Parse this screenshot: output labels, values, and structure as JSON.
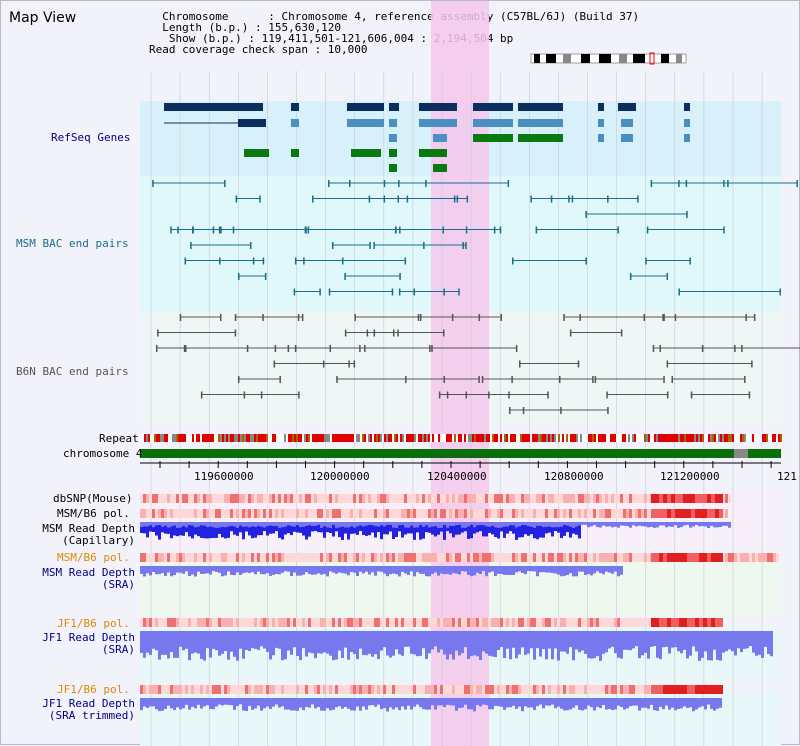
{
  "title": "Map View",
  "info": {
    "chromosome": "  Chromosome      : Chromosome 4, reference assembly (C57BL/6J) (Build 37)",
    "length": "  Length (b.p.) : 155,630,120",
    "show": "   Show (b.p.) : 119,411,501-121,606,004 : 2,194,504 bp",
    "coverage": "Read coverage check span : 10,000"
  },
  "tracks": {
    "refseq": "RefSeq Genes",
    "msm_bac": "MSM BAC end pairs",
    "b6n_bac": "B6N BAC end pairs",
    "repeat": "Repeat",
    "chromosome": "chromosome 4",
    "dbsnp": "dbSNP(Mouse)",
    "msm_b6_pol_1": "MSM/B6 pol.",
    "msm_rd_cap_1": "MSM Read Depth",
    "msm_rd_cap_2": "(Capillary)",
    "msm_b6_pol_2": "MSM/B6 pol.",
    "msm_rd_sra_1": "MSM Read Depth",
    "msm_rd_sra_2": "(SRA)",
    "jf1_b6_pol_1": "JF1/B6 pol.",
    "jf1_rd_sra_1": "JF1 Read Depth",
    "jf1_rd_sra_2": "(SRA)",
    "jf1_b6_pol_2": "JF1/B6 pol.",
    "jf1_rd_trim_1": "JF1 Read Depth",
    "jf1_rd_trim_2": "(SRA trimmed)"
  },
  "ruler": {
    "ticks": [
      "119600000",
      "120000000",
      "120400000",
      "120800000",
      "121200000",
      "121"
    ]
  },
  "colors": {
    "refseq_blue": "#0b2e5e",
    "refseq_mid": "#4a8fc0",
    "refseq_green": "#0a7a10",
    "bac_teal": "#1a6e8a",
    "b6n_gray": "#555555",
    "highlight": "#f6c8ec",
    "repeat_red": "#e00000",
    "chrom_green": "#0a6e0a",
    "depth_blue": "#2222e0",
    "depth_light": "#7777ee",
    "pol_msm": "#dd8800",
    "pol_jf1": "#dd8800",
    "label_blue": "#000080",
    "label_teal": "#1a6e8a"
  }
}
